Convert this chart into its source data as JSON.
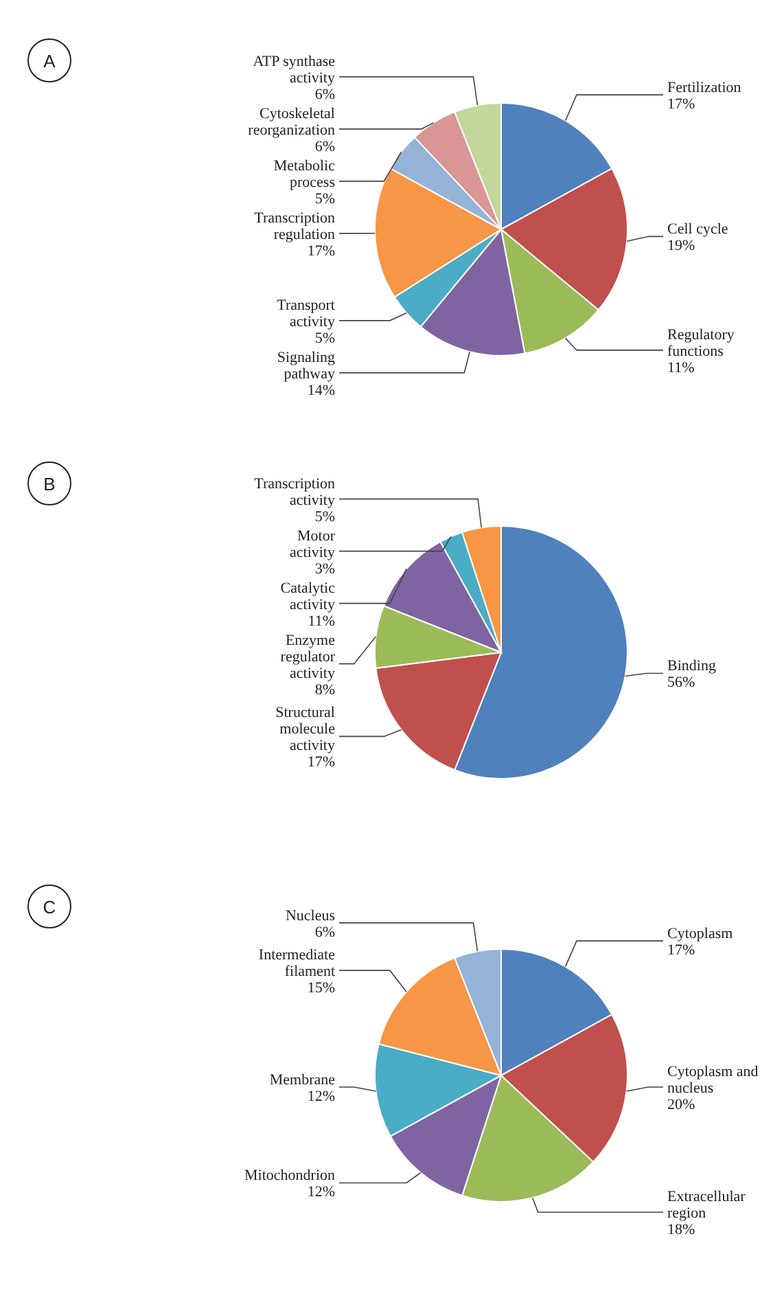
{
  "chart_data": [
    {
      "type": "pie",
      "annotations": [
        "A"
      ],
      "categories": [
        "Fertilization",
        "Cell cycle",
        "Regulatory functions",
        "Signaling pathway",
        "Transport activity",
        "Transcription regulation",
        "Metabolic process",
        "Cytoskeletal reorganization",
        "ATP synthase activity"
      ],
      "values": [
        17,
        19,
        11,
        14,
        5,
        17,
        5,
        6,
        6
      ],
      "value_labels": [
        "17%",
        "19%",
        "11%",
        "14%",
        "5%",
        "17%",
        "5%",
        "6%",
        "6%"
      ],
      "colors": [
        "#4f81bd",
        "#c0504d",
        "#9bbb59",
        "#8064a2",
        "#4bacc6",
        "#f79646",
        "#95b3d7",
        "#d99694",
        "#c3d69b"
      ],
      "legend": false
    },
    {
      "type": "pie",
      "annotations": [
        "B"
      ],
      "categories": [
        "Binding",
        "Structural molecule activity",
        "Enzyme regulator activity",
        "Catalytic activity",
        "Motor activity",
        "Transcription activity"
      ],
      "values": [
        56,
        17,
        8,
        11,
        3,
        5
      ],
      "value_labels": [
        "56%",
        "17%",
        "8%",
        "11%",
        "3%",
        "5%"
      ],
      "colors": [
        "#4f81bd",
        "#c0504d",
        "#9bbb59",
        "#8064a2",
        "#4bacc6",
        "#f79646"
      ],
      "legend": false
    },
    {
      "type": "pie",
      "annotations": [
        "C"
      ],
      "categories": [
        "Cytoplasm",
        "Cytoplasm and nucleus",
        "Extracellular region",
        "Mitochondrion",
        "Membrane",
        "Intermediate filament",
        "Nucleus"
      ],
      "values": [
        17,
        20,
        18,
        12,
        12,
        15,
        6
      ],
      "value_labels": [
        "17%",
        "20%",
        "18%",
        "12%",
        "12%",
        "15%",
        "6%"
      ],
      "colors": [
        "#4f81bd",
        "#c0504d",
        "#9bbb59",
        "#8064a2",
        "#4bacc6",
        "#f79646",
        "#95b3d7"
      ],
      "legend": false
    }
  ]
}
